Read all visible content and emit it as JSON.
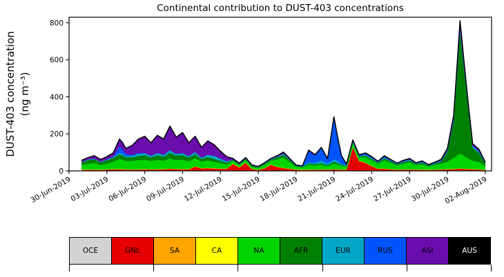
{
  "chart_data": {
    "type": "area",
    "stacked": true,
    "title": "Continental contribution to DUST-403 concentrations",
    "ylabel_line1": "DUST-403 concentration",
    "ylabel_line2": "(ng m⁻³)",
    "ylim": [
      0,
      830
    ],
    "y_ticks": [
      0,
      200,
      400,
      600,
      800
    ],
    "xlim": [
      0,
      33.5
    ],
    "x_unit": "days since 30-Jun-2019",
    "x_ticks": [
      0,
      3,
      6,
      9,
      12,
      15,
      18,
      21,
      24,
      27,
      30,
      33
    ],
    "x_tick_labels": [
      "30-Jun-2019",
      "03-Jul-2019",
      "06-Jul-2019",
      "09-Jul-2019",
      "12-Jul-2019",
      "15-Jul-2019",
      "18-Jul-2019",
      "21-Jul-2019",
      "24-Jul-2019",
      "27-Jul-2019",
      "30-Jul-2019",
      "02-Aug-2019"
    ],
    "grid": false,
    "legend_position": "bottom-strip",
    "x": [
      1.0,
      1.5,
      2.0,
      2.5,
      3.0,
      3.5,
      4.0,
      4.25,
      4.5,
      5.0,
      5.5,
      6.0,
      6.5,
      7.0,
      7.5,
      8.0,
      8.25,
      8.5,
      9.0,
      9.5,
      10.0,
      10.5,
      11.0,
      11.5,
      12.0,
      12.5,
      13.0,
      13.5,
      14.0,
      14.5,
      15.0,
      15.5,
      16.0,
      16.5,
      17.0,
      17.5,
      18.0,
      18.5,
      19.0,
      19.5,
      20.0,
      20.5,
      21.0,
      21.3,
      21.6,
      22.0,
      22.5,
      23.0,
      23.5,
      24.0,
      24.5,
      25.0,
      25.5,
      26.0,
      26.5,
      27.0,
      27.5,
      28.0,
      28.5,
      29.0,
      29.5,
      30.0,
      30.5,
      31.0,
      31.3,
      31.7,
      32.0,
      32.5,
      33.0
    ],
    "series": [
      {
        "name": "OCE",
        "color": "#d3d3d3",
        "values": [
          3,
          3,
          3,
          3,
          3,
          3,
          3,
          3,
          3,
          3,
          3,
          3,
          3,
          3,
          3,
          3,
          3,
          3,
          3,
          3,
          3,
          3,
          3,
          3,
          3,
          3,
          3,
          3,
          3,
          3,
          3,
          3,
          3,
          3,
          3,
          3,
          3,
          3,
          3,
          3,
          3,
          3,
          3,
          3,
          3,
          3,
          3,
          3,
          3,
          3,
          3,
          3,
          3,
          3,
          3,
          3,
          3,
          3,
          3,
          3,
          3,
          3,
          3,
          4,
          4,
          3,
          3,
          3,
          2
        ]
      },
      {
        "name": "GNL",
        "color": "#e60000",
        "values": [
          2,
          3,
          3,
          2,
          4,
          5,
          5,
          5,
          4,
          4,
          4,
          5,
          4,
          5,
          5,
          8,
          7,
          6,
          6,
          5,
          20,
          10,
          12,
          10,
          8,
          8,
          35,
          15,
          40,
          6,
          2,
          10,
          30,
          18,
          12,
          8,
          3,
          2,
          3,
          3,
          4,
          3,
          5,
          4,
          3,
          3,
          125,
          50,
          40,
          22,
          8,
          8,
          5,
          3,
          4,
          4,
          3,
          3,
          2,
          3,
          4,
          5,
          6,
          8,
          7,
          6,
          5,
          4,
          2
        ]
      },
      {
        "name": "SA",
        "color": "#ffa500",
        "values": [
          1,
          1,
          1,
          1,
          1,
          1,
          1,
          1,
          1,
          1,
          1,
          1,
          1,
          1,
          1,
          1,
          1,
          1,
          1,
          1,
          1,
          1,
          1,
          1,
          1,
          1,
          1,
          1,
          1,
          1,
          1,
          1,
          1,
          1,
          1,
          1,
          1,
          1,
          1,
          1,
          1,
          1,
          1,
          1,
          1,
          1,
          1,
          1,
          1,
          1,
          1,
          1,
          1,
          1,
          1,
          1,
          1,
          1,
          1,
          1,
          1,
          1,
          1,
          1,
          1,
          1,
          1,
          1,
          1
        ]
      },
      {
        "name": "CA",
        "color": "#ffff00",
        "values": [
          1,
          1,
          1,
          1,
          1,
          1,
          1,
          1,
          1,
          1,
          1,
          1,
          1,
          1,
          1,
          1,
          1,
          1,
          1,
          1,
          1,
          1,
          1,
          1,
          1,
          1,
          1,
          1,
          1,
          1,
          1,
          1,
          1,
          1,
          1,
          1,
          1,
          1,
          1,
          1,
          1,
          1,
          1,
          1,
          1,
          1,
          1,
          1,
          1,
          1,
          1,
          1,
          1,
          1,
          1,
          1,
          1,
          1,
          1,
          1,
          1,
          1,
          1,
          1,
          1,
          1,
          1,
          1,
          1
        ]
      },
      {
        "name": "NA",
        "color": "#00d400",
        "values": [
          25,
          30,
          35,
          25,
          30,
          40,
          55,
          50,
          45,
          45,
          50,
          50,
          45,
          50,
          45,
          55,
          50,
          48,
          50,
          42,
          45,
          35,
          40,
          35,
          30,
          22,
          15,
          12,
          15,
          12,
          10,
          18,
          20,
          40,
          55,
          35,
          15,
          12,
          25,
          22,
          25,
          18,
          30,
          25,
          20,
          15,
          20,
          18,
          30,
          30,
          25,
          45,
          35,
          22,
          30,
          38,
          24,
          28,
          18,
          25,
          30,
          40,
          60,
          80,
          70,
          55,
          45,
          40,
          20
        ]
      },
      {
        "name": "AFR",
        "color": "#008000",
        "values": [
          15,
          20,
          20,
          15,
          18,
          20,
          25,
          25,
          20,
          20,
          22,
          25,
          20,
          25,
          22,
          30,
          28,
          25,
          25,
          20,
          20,
          15,
          18,
          15,
          12,
          10,
          5,
          4,
          5,
          4,
          3,
          5,
          5,
          10,
          15,
          10,
          5,
          4,
          8,
          7,
          8,
          6,
          10,
          8,
          6,
          4,
          5,
          5,
          8,
          8,
          6,
          10,
          8,
          6,
          8,
          9,
          6,
          8,
          5,
          7,
          12,
          55,
          200,
          660,
          480,
          240,
          70,
          50,
          15
        ]
      },
      {
        "name": "EUR",
        "color": "#00a7c7",
        "values": [
          2,
          4,
          4,
          3,
          5,
          7,
          7,
          7,
          6,
          8,
          11,
          12,
          8,
          12,
          10,
          14,
          12,
          8,
          11,
          8,
          12,
          7,
          12,
          17,
          12,
          7,
          2,
          2,
          2,
          2,
          2,
          3,
          4,
          4,
          7,
          4,
          2,
          2,
          6,
          6,
          15,
          7,
          12,
          11,
          5,
          3,
          4,
          3,
          5,
          4,
          3,
          5,
          3,
          2,
          4,
          4,
          2,
          4,
          1,
          2,
          3,
          4,
          6,
          10,
          8,
          6,
          6,
          5,
          1
        ]
      },
      {
        "name": "RUS",
        "color": "#0055ff",
        "values": [
          0,
          0,
          0,
          0,
          0,
          0,
          35,
          25,
          12,
          5,
          5,
          0,
          0,
          0,
          0,
          0,
          0,
          0,
          0,
          0,
          0,
          0,
          0,
          0,
          0,
          0,
          0,
          0,
          0,
          0,
          0,
          0,
          0,
          0,
          0,
          0,
          0,
          0,
          60,
          40,
          65,
          25,
          225,
          125,
          40,
          5,
          5,
          3,
          5,
          4,
          2,
          4,
          2,
          1,
          2,
          2,
          1,
          2,
          1,
          2,
          3,
          3,
          5,
          8,
          6,
          5,
          6,
          5,
          1
        ]
      },
      {
        "name": "ASI",
        "color": "#6a0dad",
        "values": [
          8,
          10,
          15,
          12,
          15,
          20,
          40,
          35,
          30,
          50,
          75,
          90,
          70,
          95,
          85,
          130,
          110,
          90,
          110,
          72,
          85,
          55,
          75,
          60,
          40,
          25,
          5,
          4,
          5,
          3,
          2,
          3,
          3,
          5,
          8,
          5,
          2,
          2,
          5,
          4,
          5,
          3,
          5,
          4,
          3,
          2,
          3,
          3,
          4,
          4,
          3,
          5,
          4,
          3,
          4,
          5,
          3,
          4,
          2,
          3,
          5,
          10,
          20,
          40,
          25,
          15,
          10,
          8,
          4
        ]
      },
      {
        "name": "AUS",
        "color": "#000000",
        "values": [
          0,
          0,
          0,
          0,
          0,
          0,
          0,
          0,
          0,
          0,
          0,
          0,
          0,
          0,
          0,
          0,
          0,
          0,
          0,
          0,
          0,
          0,
          0,
          0,
          0,
          0,
          0,
          0,
          0,
          0,
          0,
          0,
          0,
          0,
          0,
          0,
          0,
          0,
          0,
          0,
          0,
          0,
          0,
          0,
          0,
          0,
          0,
          0,
          0,
          0,
          0,
          0,
          0,
          0,
          0,
          0,
          0,
          0,
          0,
          0,
          0,
          0,
          0,
          0,
          0,
          0,
          0,
          0,
          0
        ]
      }
    ]
  },
  "legend": {
    "items": [
      {
        "label": "OCE",
        "color": "#d3d3d3",
        "text": "#000000"
      },
      {
        "label": "GNL",
        "color": "#e60000",
        "text": "#000000"
      },
      {
        "label": "SA",
        "color": "#ffa500",
        "text": "#000000"
      },
      {
        "label": "CA",
        "color": "#ffff00",
        "text": "#000000"
      },
      {
        "label": "NA",
        "color": "#00d400",
        "text": "#000000"
      },
      {
        "label": "AFR",
        "color": "#008000",
        "text": "#000000"
      },
      {
        "label": "EUR",
        "color": "#00a7c7",
        "text": "#000000"
      },
      {
        "label": "RUS",
        "color": "#0055ff",
        "text": "#000000"
      },
      {
        "label": "ASI",
        "color": "#6a0dad",
        "text": "#000000"
      },
      {
        "label": "AUS",
        "color": "#000000",
        "text": "#ffffff"
      }
    ]
  }
}
